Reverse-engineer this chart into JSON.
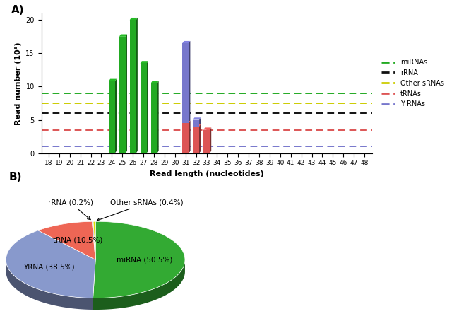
{
  "title_a": "A)",
  "title_b": "B)",
  "read_lengths": [
    18,
    19,
    20,
    21,
    22,
    23,
    24,
    25,
    26,
    27,
    28,
    29,
    30,
    31,
    32,
    33,
    34,
    35,
    36,
    37,
    38,
    39,
    40,
    41,
    42,
    43,
    44,
    45,
    46,
    47,
    48
  ],
  "mirna_values": [
    0,
    0,
    0,
    0,
    0,
    0,
    10.8,
    17.5,
    20,
    13.5,
    10.5,
    0,
    0,
    0,
    0,
    0,
    0,
    0,
    0,
    0,
    0,
    0,
    0,
    0,
    0,
    0,
    0,
    0,
    0,
    0,
    0
  ],
  "yrna_values": [
    0,
    0,
    0,
    0,
    0,
    0,
    0,
    0,
    0,
    0,
    0,
    0,
    0,
    16.5,
    5,
    0,
    0,
    0,
    0,
    0,
    0,
    0,
    0,
    0,
    0,
    0,
    0,
    0,
    0,
    0,
    0
  ],
  "trna_values": [
    0,
    0,
    0,
    0,
    0,
    0,
    0,
    0,
    0,
    0,
    0,
    0,
    0,
    4.5,
    4,
    3.5,
    0,
    0,
    0,
    0,
    0,
    0,
    0,
    0,
    0,
    0,
    0,
    0,
    0,
    0,
    0
  ],
  "mirna_color": "#22aa22",
  "yrna_color": "#7777cc",
  "trna_color": "#dd5555",
  "rrna_color": "#111111",
  "other_color": "#cccc00",
  "dashed_levels": [
    9.0,
    7.5,
    6.0,
    3.5,
    1.0
  ],
  "dashed_colors": [
    "#22aa22",
    "#cccc00",
    "#111111",
    "#dd5555",
    "#7777cc"
  ],
  "ylabel": "Read number (10⁶)",
  "xlabel": "Read length (nucleotides)",
  "legend_labels": [
    "miRNAs",
    "rRNA",
    "Other sRNAs",
    "tRNAs",
    "Y RNAs"
  ],
  "legend_colors": [
    "#22aa22",
    "#111111",
    "#cccc00",
    "#dd5555",
    "#7777cc"
  ],
  "ylim": [
    0,
    21
  ],
  "yticks": [
    0,
    5,
    10,
    15,
    20
  ],
  "pie_sizes": [
    50.5,
    38.5,
    10.5,
    0.2,
    0.4
  ],
  "pie_colors": [
    "#33aa33",
    "#8899cc",
    "#ee6655",
    "#6644aa",
    "#dddd00"
  ],
  "pie_inner_labels": [
    "miRNA (50.5%)",
    "YRNA (38.5%)",
    "tRNA (10.5%)",
    "",
    ""
  ],
  "pie_outer_labels": [
    "rRNA (0.2%)",
    "Other sRNAs (0.4%)"
  ],
  "pie_outer_indices": [
    3,
    4
  ]
}
